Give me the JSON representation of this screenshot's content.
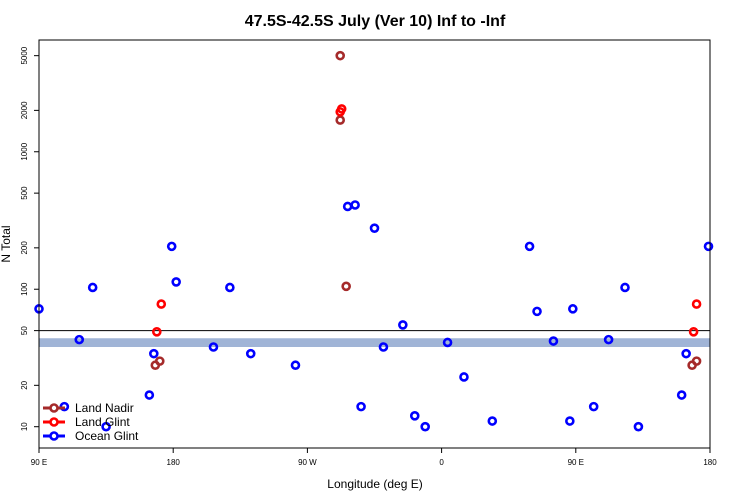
{
  "chart_data": {
    "type": "scatter",
    "title": "47.5S-42.5S July (Ver 10)   Inf to -Inf",
    "xlabel": "Longitude (deg E)",
    "ylabel": "N Total",
    "y_scale": "log",
    "xlim": [
      90,
      540
    ],
    "ylim": [
      7,
      6500
    ],
    "grid": false,
    "legend_position": "bottom-left",
    "x_ticks": [
      {
        "value": 90,
        "label": "90 E"
      },
      {
        "value": 180,
        "label": "180"
      },
      {
        "value": 270,
        "label": "90 W"
      },
      {
        "value": 360,
        "label": "0"
      },
      {
        "value": 450,
        "label": "90 E"
      },
      {
        "value": 540,
        "label": "180"
      }
    ],
    "y_ticks": [
      {
        "value": 10,
        "label": "10"
      },
      {
        "value": 20,
        "label": "20"
      },
      {
        "value": 50,
        "label": "50"
      },
      {
        "value": 100,
        "label": "100"
      },
      {
        "value": 200,
        "label": "200"
      },
      {
        "value": 500,
        "label": "500"
      },
      {
        "value": 1000,
        "label": "1000"
      },
      {
        "value": 2000,
        "label": "2000"
      },
      {
        "value": 5000,
        "label": "5000"
      }
    ],
    "reference_line": 50,
    "band": {
      "y_min": 38,
      "y_max": 44,
      "color": "#a0b4d6"
    },
    "series": [
      {
        "name": "Land Nadir",
        "color": "#a52a2a",
        "points": [
          {
            "x": 168,
            "y": 28
          },
          {
            "x": 171,
            "y": 30
          },
          {
            "x": 292,
            "y": 1700
          },
          {
            "x": 292,
            "y": 5000
          },
          {
            "x": 296,
            "y": 105
          },
          {
            "x": 528,
            "y": 28
          },
          {
            "x": 531,
            "y": 30
          }
        ]
      },
      {
        "name": "Land Glint",
        "color": "#ff0000",
        "points": [
          {
            "x": 169,
            "y": 49
          },
          {
            "x": 172,
            "y": 78
          },
          {
            "x": 292,
            "y": 1950
          },
          {
            "x": 293,
            "y": 2050
          },
          {
            "x": 529,
            "y": 49
          },
          {
            "x": 531,
            "y": 78
          }
        ]
      },
      {
        "name": "Ocean Glint",
        "color": "#0000ff",
        "points": [
          {
            "x": 90,
            "y": 72
          },
          {
            "x": 107,
            "y": 14
          },
          {
            "x": 117,
            "y": 43
          },
          {
            "x": 126,
            "y": 103
          },
          {
            "x": 135,
            "y": 10
          },
          {
            "x": 164,
            "y": 17
          },
          {
            "x": 167,
            "y": 34
          },
          {
            "x": 179,
            "y": 205
          },
          {
            "x": 182,
            "y": 113
          },
          {
            "x": 207,
            "y": 38
          },
          {
            "x": 218,
            "y": 103
          },
          {
            "x": 232,
            "y": 34
          },
          {
            "x": 262,
            "y": 28
          },
          {
            "x": 297,
            "y": 400
          },
          {
            "x": 302,
            "y": 410
          },
          {
            "x": 306,
            "y": 14
          },
          {
            "x": 315,
            "y": 278
          },
          {
            "x": 321,
            "y": 38
          },
          {
            "x": 334,
            "y": 55
          },
          {
            "x": 342,
            "y": 12
          },
          {
            "x": 349,
            "y": 10
          },
          {
            "x": 364,
            "y": 41
          },
          {
            "x": 375,
            "y": 23
          },
          {
            "x": 394,
            "y": 11
          },
          {
            "x": 419,
            "y": 205
          },
          {
            "x": 424,
            "y": 69
          },
          {
            "x": 435,
            "y": 42
          },
          {
            "x": 446,
            "y": 11
          },
          {
            "x": 448,
            "y": 72
          },
          {
            "x": 462,
            "y": 14
          },
          {
            "x": 472,
            "y": 43
          },
          {
            "x": 483,
            "y": 103
          },
          {
            "x": 492,
            "y": 10
          },
          {
            "x": 521,
            "y": 17
          },
          {
            "x": 524,
            "y": 34
          },
          {
            "x": 539,
            "y": 205
          }
        ]
      }
    ]
  }
}
